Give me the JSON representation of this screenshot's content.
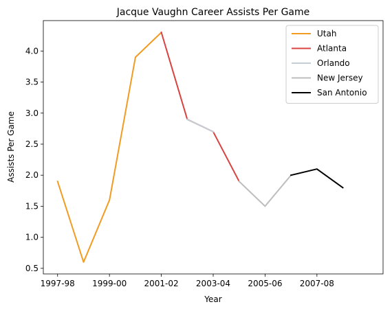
{
  "chart_data": {
    "type": "line",
    "title": "Jacque Vaughn Career Assists Per Game",
    "xlabel": "Year",
    "ylabel": "Assists Per Game",
    "x_ticks": [
      "1997-98",
      "1999-00",
      "2001-02",
      "2003-04",
      "2005-06",
      "2007-08"
    ],
    "y_ticks": [
      "0.5",
      "1.0",
      "1.5",
      "2.0",
      "2.5",
      "3.0",
      "3.5",
      "4.0"
    ],
    "ylim": [
      0.41,
      4.49
    ],
    "grid": false,
    "legend_position": "top-right",
    "series": [
      {
        "name": "Utah",
        "color": "#f29b22",
        "points": [
          [
            "1997-98",
            1.9
          ],
          [
            "1998-99",
            0.6
          ],
          [
            "1999-00",
            1.6
          ],
          [
            "2000-01",
            3.9
          ],
          [
            "2001-02",
            4.3
          ]
        ]
      },
      {
        "name": "Atlanta",
        "color": "#d9423f",
        "points": [
          [
            "2001-02",
            4.3
          ],
          [
            "2002-03",
            2.9
          ],
          [
            "2003-04",
            2.7
          ],
          [
            "2004-05",
            1.9
          ]
        ]
      },
      {
        "name": "Orlando",
        "color": "#c4ced4",
        "points": [
          [
            "2002-03",
            2.9
          ],
          [
            "2003-04",
            2.7
          ]
        ]
      },
      {
        "name": "New Jersey",
        "color": "#bdbdbd",
        "points": [
          [
            "2004-05",
            1.9
          ],
          [
            "2005-06",
            1.5
          ],
          [
            "2006-07",
            2.0
          ]
        ]
      },
      {
        "name": "San Antonio",
        "color": "#000000",
        "points": [
          [
            "2006-07",
            2.0
          ],
          [
            "2007-08",
            2.1
          ],
          [
            "2008-09",
            1.8
          ]
        ]
      }
    ]
  }
}
